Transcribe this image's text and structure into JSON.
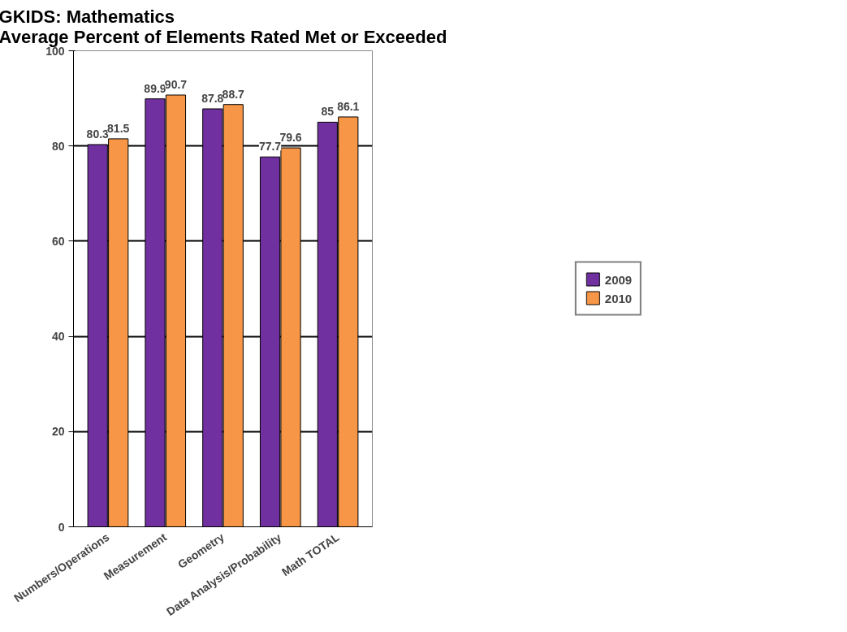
{
  "chart_data": {
    "type": "bar",
    "title": "GKIDS:  Mathematics\nAverage Percent of Elements Rated Met or Exceeded",
    "categories": [
      "Numbers/Operations",
      "Measurement",
      "Geometry",
      "Data Analysis/Probability",
      "Math TOTAL"
    ],
    "series": [
      {
        "name": "2009",
        "color": "#7030a0",
        "values": [
          80.3,
          89.9,
          87.8,
          77.7,
          85
        ]
      },
      {
        "name": "2010",
        "color": "#f79646",
        "values": [
          81.5,
          90.7,
          88.7,
          79.6,
          86.1
        ]
      }
    ],
    "ylim": [
      0,
      100
    ],
    "yticks": [
      0,
      20,
      40,
      60,
      80,
      100
    ],
    "grid": "y",
    "legend": "right",
    "data_labels": true
  }
}
